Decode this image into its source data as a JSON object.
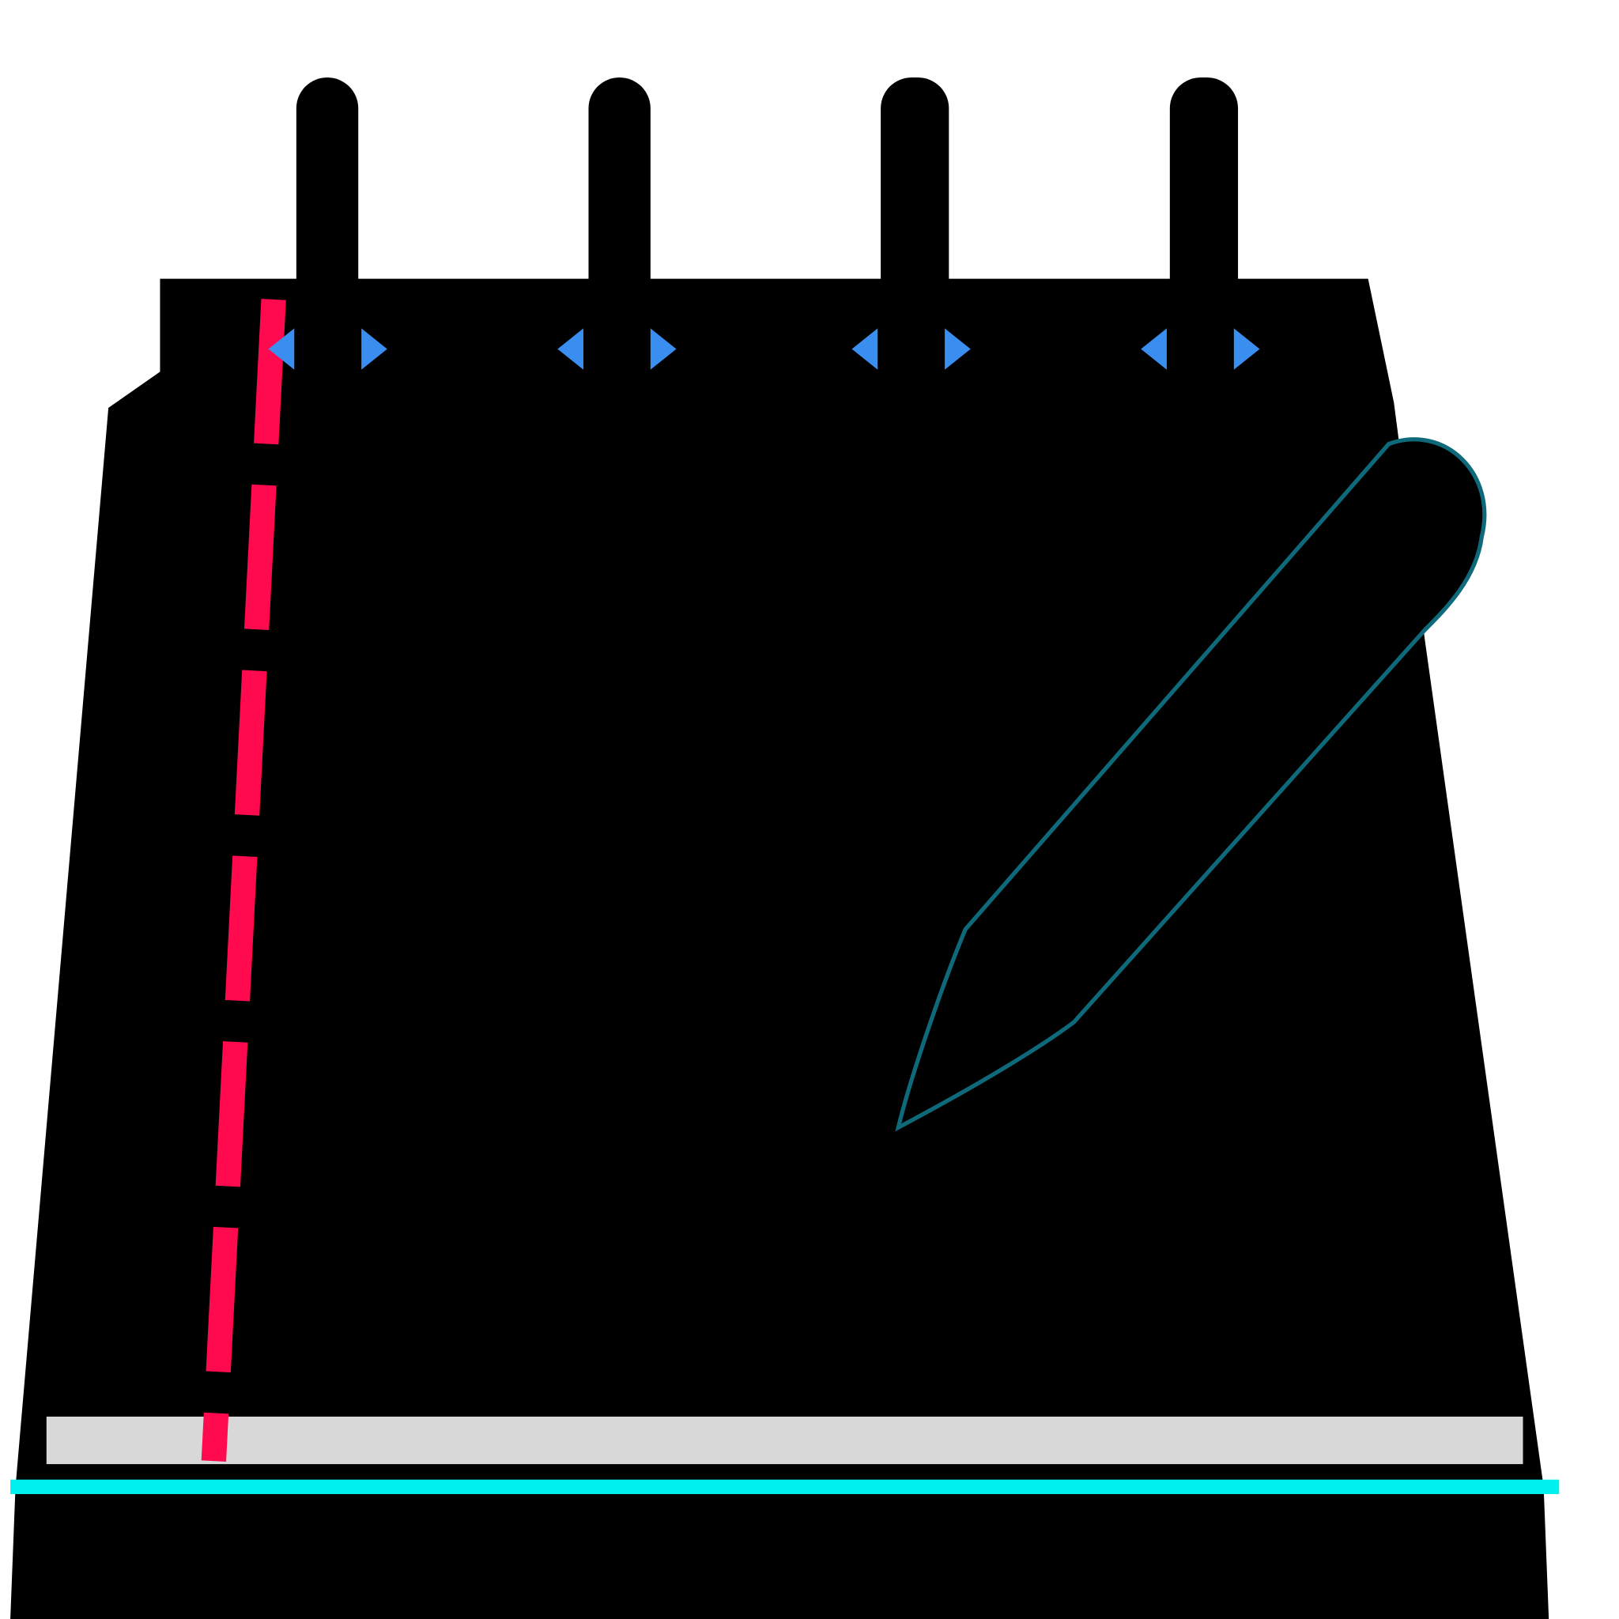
{
  "icon": {
    "name": "notepad-with-pen-icon",
    "colors": {
      "background": "#ffffff",
      "body": "#000000",
      "margin_line": "#ff0a4e",
      "ring_holes": "#3a8ef0",
      "page_edge": "#d8d8d8",
      "base_line": "#00f0f0",
      "pen_outline": "#0e6a7a"
    }
  }
}
